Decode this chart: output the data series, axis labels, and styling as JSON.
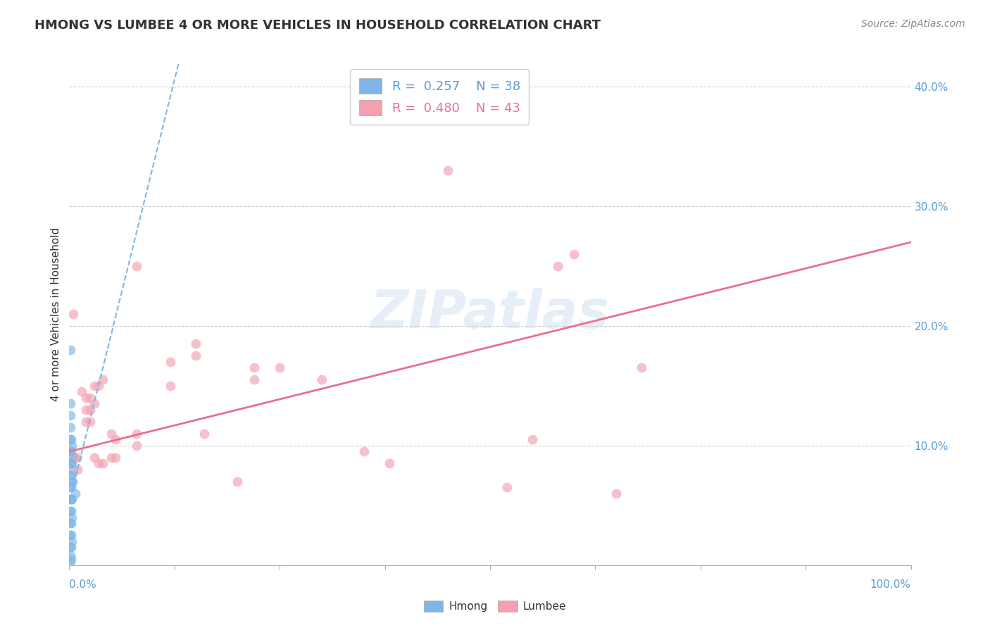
{
  "title": "HMONG VS LUMBEE 4 OR MORE VEHICLES IN HOUSEHOLD CORRELATION CHART",
  "source": "Source: ZipAtlas.com",
  "ylabel": "4 or more Vehicles in Household",
  "yticks": [
    0.0,
    0.1,
    0.2,
    0.3,
    0.4
  ],
  "ytick_labels": [
    "",
    "10.0%",
    "20.0%",
    "30.0%",
    "40.0%"
  ],
  "xlim": [
    0.0,
    1.0
  ],
  "ylim": [
    0.0,
    0.42
  ],
  "watermark": "ZIPatlas",
  "hmong_color": "#7EB6E8",
  "lumbee_color": "#F4A0B0",
  "hmong_R": 0.257,
  "hmong_N": 38,
  "lumbee_R": 0.48,
  "lumbee_N": 43,
  "hmong_scatter": [
    [
      0.001,
      0.18
    ],
    [
      0.001,
      0.135
    ],
    [
      0.001,
      0.125
    ],
    [
      0.001,
      0.115
    ],
    [
      0.001,
      0.105
    ],
    [
      0.001,
      0.095
    ],
    [
      0.001,
      0.085
    ],
    [
      0.001,
      0.075
    ],
    [
      0.001,
      0.065
    ],
    [
      0.001,
      0.055
    ],
    [
      0.001,
      0.045
    ],
    [
      0.001,
      0.035
    ],
    [
      0.001,
      0.025
    ],
    [
      0.001,
      0.015
    ],
    [
      0.001,
      0.008
    ],
    [
      0.001,
      0.003
    ],
    [
      0.002,
      0.105
    ],
    [
      0.002,
      0.095
    ],
    [
      0.002,
      0.085
    ],
    [
      0.002,
      0.075
    ],
    [
      0.002,
      0.065
    ],
    [
      0.002,
      0.055
    ],
    [
      0.002,
      0.045
    ],
    [
      0.002,
      0.035
    ],
    [
      0.002,
      0.025
    ],
    [
      0.002,
      0.015
    ],
    [
      0.002,
      0.005
    ],
    [
      0.003,
      0.1
    ],
    [
      0.003,
      0.085
    ],
    [
      0.003,
      0.07
    ],
    [
      0.003,
      0.055
    ],
    [
      0.003,
      0.04
    ],
    [
      0.003,
      0.02
    ],
    [
      0.004,
      0.09
    ],
    [
      0.004,
      0.07
    ],
    [
      0.005,
      0.08
    ],
    [
      0.006,
      0.09
    ],
    [
      0.007,
      0.06
    ]
  ],
  "lumbee_scatter": [
    [
      0.005,
      0.21
    ],
    [
      0.01,
      0.09
    ],
    [
      0.01,
      0.08
    ],
    [
      0.015,
      0.145
    ],
    [
      0.02,
      0.14
    ],
    [
      0.02,
      0.13
    ],
    [
      0.02,
      0.12
    ],
    [
      0.025,
      0.14
    ],
    [
      0.025,
      0.13
    ],
    [
      0.025,
      0.12
    ],
    [
      0.03,
      0.15
    ],
    [
      0.03,
      0.135
    ],
    [
      0.03,
      0.09
    ],
    [
      0.035,
      0.15
    ],
    [
      0.035,
      0.085
    ],
    [
      0.04,
      0.155
    ],
    [
      0.04,
      0.085
    ],
    [
      0.05,
      0.11
    ],
    [
      0.05,
      0.09
    ],
    [
      0.055,
      0.105
    ],
    [
      0.055,
      0.09
    ],
    [
      0.08,
      0.11
    ],
    [
      0.08,
      0.1
    ],
    [
      0.08,
      0.25
    ],
    [
      0.12,
      0.17
    ],
    [
      0.12,
      0.15
    ],
    [
      0.15,
      0.185
    ],
    [
      0.15,
      0.175
    ],
    [
      0.16,
      0.11
    ],
    [
      0.2,
      0.07
    ],
    [
      0.22,
      0.165
    ],
    [
      0.22,
      0.155
    ],
    [
      0.25,
      0.165
    ],
    [
      0.3,
      0.155
    ],
    [
      0.35,
      0.095
    ],
    [
      0.38,
      0.085
    ],
    [
      0.45,
      0.33
    ],
    [
      0.52,
      0.065
    ],
    [
      0.55,
      0.105
    ],
    [
      0.58,
      0.25
    ],
    [
      0.6,
      0.26
    ],
    [
      0.65,
      0.06
    ],
    [
      0.68,
      0.165
    ]
  ],
  "lumbee_trendline_x": [
    0.0,
    1.0
  ],
  "lumbee_trendline_y": [
    0.095,
    0.27
  ],
  "hmong_trendline_x": [
    0.001,
    0.13
  ],
  "hmong_trendline_y": [
    0.055,
    0.42
  ],
  "background_color": "#FFFFFF",
  "grid_color": "#CCCCCC",
  "title_color": "#333333",
  "axis_label_color": "#5B9BD5",
  "legend_color_hmong_text": "#5B9BD5",
  "legend_color_lumbee_text": "#E87090",
  "legend_color_N_hmong": "#38A838",
  "legend_color_N_lumbee": "#38A838"
}
